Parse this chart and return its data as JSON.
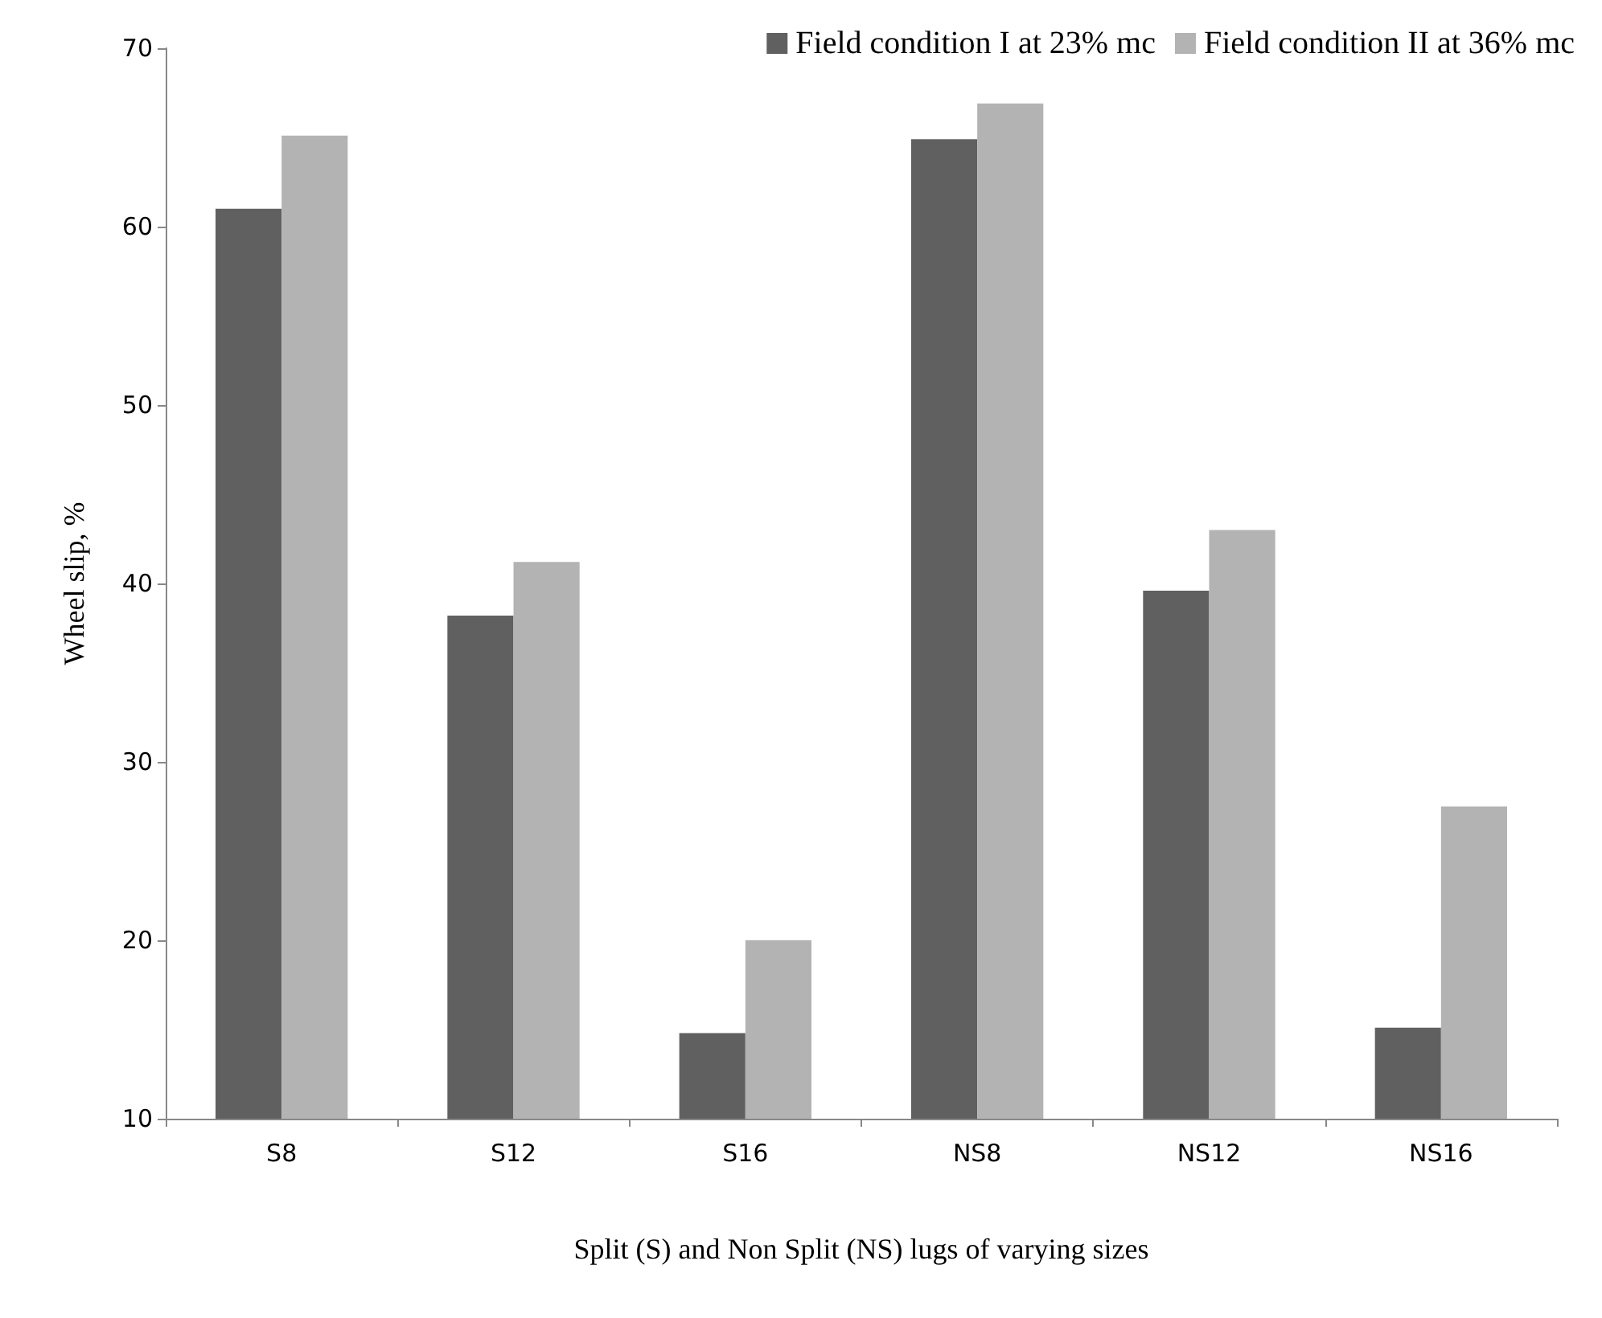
{
  "chart_data": {
    "type": "bar",
    "xlabel": "Split (S) and Non Split (NS) lugs of varying sizes",
    "ylabel": "Wheel slip, %",
    "categories": [
      "S8",
      "S12",
      "S16",
      "NS8",
      "NS12",
      "NS16"
    ],
    "series": [
      {
        "name": "Field condition I at 23% mc",
        "color": "#606060",
        "values": [
          61.0,
          38.2,
          14.8,
          64.9,
          39.6,
          15.1
        ]
      },
      {
        "name": "Field condition II at 36% mc",
        "color": "#b3b3b3",
        "values": [
          65.1,
          41.2,
          20.0,
          66.9,
          43.0,
          27.5
        ]
      }
    ],
    "ylim": [
      10,
      70
    ],
    "yticks": [
      10,
      20,
      30,
      40,
      50,
      60,
      70
    ],
    "grid": false,
    "legend": "top right"
  }
}
